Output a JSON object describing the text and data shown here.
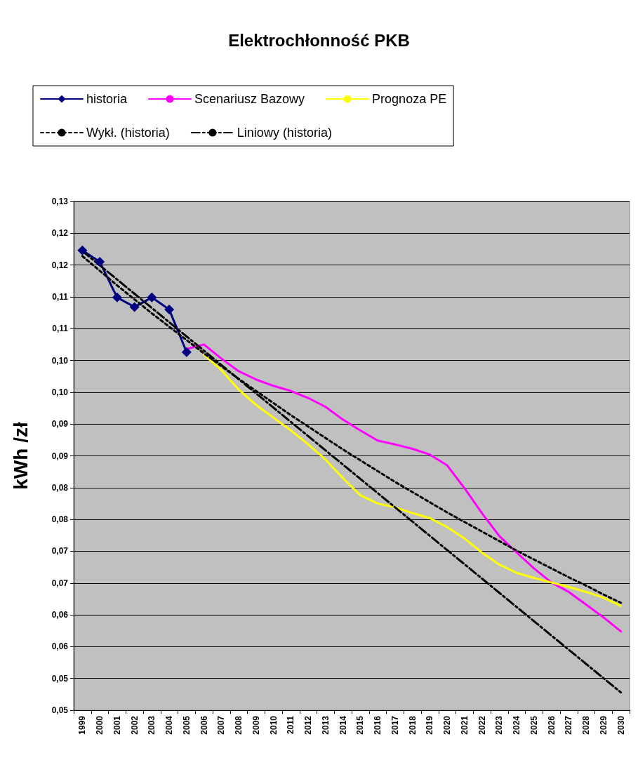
{
  "chart_data": {
    "type": "line",
    "title": "Elektrochłonność PKB",
    "ylabel": "kWh /zł",
    "categories": [
      "1999",
      "2000",
      "2001",
      "2002",
      "2003",
      "2004",
      "2005",
      "2006",
      "2007",
      "2008",
      "2009",
      "2010",
      "2011",
      "2012",
      "2013",
      "2014",
      "2015",
      "2016",
      "2017",
      "2018",
      "2019",
      "2020",
      "2021",
      "2022",
      "2023",
      "2024",
      "2025",
      "2026",
      "2027",
      "2028",
      "2029",
      "2030"
    ],
    "series": [
      {
        "name": "historia",
        "color": "#000080",
        "marker": "diamond",
        "line_style": "solid",
        "values": [
          0.1223,
          0.1205,
          0.1149,
          0.1134,
          0.1149,
          0.113,
          0.1063,
          null,
          null,
          null,
          null,
          null,
          null,
          null,
          null,
          null,
          null,
          null,
          null,
          null,
          null,
          null,
          null,
          null,
          null,
          null,
          null,
          null,
          null,
          null,
          null,
          null
        ]
      },
      {
        "name": "Scenariusz Bazowy",
        "color": "#ff00ff",
        "marker": "none",
        "line_style": "solid",
        "values": [
          null,
          null,
          null,
          null,
          null,
          null,
          0.1068,
          0.1075,
          0.1053,
          0.1033,
          0.102,
          0.101,
          0.1002,
          0.0991,
          0.0977,
          0.0957,
          0.094,
          0.0924,
          0.0918,
          0.0911,
          0.0902,
          0.0885,
          0.0849,
          0.081,
          0.0774,
          0.0748,
          0.0723,
          0.0701,
          0.0686,
          0.0666,
          0.0646,
          0.0624
        ]
      },
      {
        "name": "Prognoza PE",
        "color": "#ffff00",
        "marker": "none",
        "line_style": "solid",
        "values": [
          null,
          null,
          null,
          null,
          null,
          null,
          null,
          0.1059,
          0.1035,
          0.1004,
          0.098,
          0.096,
          0.094,
          0.0918,
          0.0894,
          0.0865,
          0.0838,
          0.0825,
          0.0819,
          0.081,
          0.0802,
          0.0788,
          0.077,
          0.0748,
          0.0729,
          0.0716,
          0.0708,
          0.0701,
          0.0694,
          0.0686,
          0.0677,
          0.0664
        ]
      },
      {
        "name": "Wykł. (historia)",
        "color": "#000000",
        "marker": "none",
        "line_style": "dotted",
        "values": [
          0.1214,
          0.1191,
          0.1168,
          0.1146,
          0.1124,
          0.1103,
          0.1082,
          0.1061,
          0.1041,
          0.1021,
          0.1002,
          0.0983,
          0.0964,
          0.0946,
          0.0928,
          0.091,
          0.0893,
          0.0876,
          0.0859,
          0.0843,
          0.0827,
          0.0811,
          0.0796,
          0.0781,
          0.0766,
          0.0751,
          0.0737,
          0.0723,
          0.0709,
          0.0696,
          0.0682,
          0.0669
        ]
      },
      {
        "name": "Liniowy (historia)",
        "color": "#000000",
        "marker": "none",
        "line_style": "dashdot",
        "values": [
          0.1222,
          null,
          null,
          null,
          null,
          null,
          null,
          null,
          null,
          null,
          null,
          null,
          null,
          null,
          null,
          null,
          null,
          null,
          null,
          null,
          null,
          null,
          null,
          null,
          null,
          null,
          null,
          null,
          null,
          null,
          null,
          0.0528
        ]
      }
    ],
    "ylim": [
      0.05,
      0.13
    ],
    "yticks": [
      {
        "value": 0.05,
        "label": "0,05"
      },
      {
        "value": 0.055,
        "label": "0,05"
      },
      {
        "value": 0.06,
        "label": "0,06"
      },
      {
        "value": 0.065,
        "label": "0,06"
      },
      {
        "value": 0.07,
        "label": "0,07"
      },
      {
        "value": 0.075,
        "label": "0,07"
      },
      {
        "value": 0.08,
        "label": "0,08"
      },
      {
        "value": 0.085,
        "label": "0,08"
      },
      {
        "value": 0.09,
        "label": "0,09"
      },
      {
        "value": 0.095,
        "label": "0,09"
      },
      {
        "value": 0.1,
        "label": "0,10"
      },
      {
        "value": 0.105,
        "label": "0,10"
      },
      {
        "value": 0.11,
        "label": "0,11"
      },
      {
        "value": 0.115,
        "label": "0,11"
      },
      {
        "value": 0.12,
        "label": "0,12"
      },
      {
        "value": 0.125,
        "label": "0,12"
      },
      {
        "value": 0.13,
        "label": "0,13"
      }
    ],
    "grid": "y",
    "legend": "top"
  }
}
